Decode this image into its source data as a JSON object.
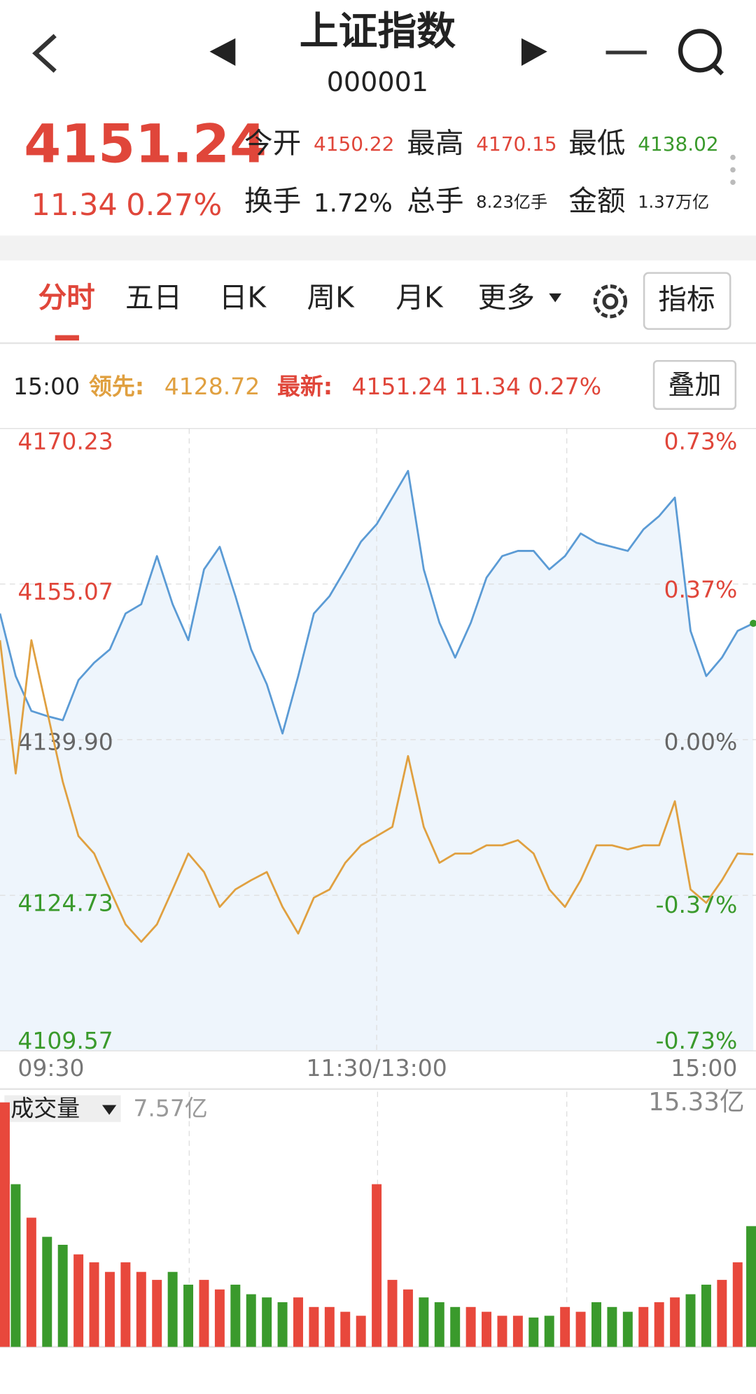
{
  "header": {
    "title": "上证指数",
    "code": "000001"
  },
  "quote": {
    "price": "4151.24",
    "change": "11.34",
    "change_pct": "0.27%",
    "stats": [
      {
        "label": "今开",
        "value": "4150.22"
      },
      {
        "label": "最高",
        "value": "4170.15"
      },
      {
        "label": "最低",
        "value": "4138.02"
      },
      {
        "label": "换手",
        "value": "1.72%"
      },
      {
        "label": "总手",
        "value": "8.23亿手"
      },
      {
        "label": "金额",
        "value": "1.37万亿"
      }
    ]
  },
  "tabs": [
    "分时",
    "五日",
    "日K",
    "周K",
    "月K",
    "更多"
  ],
  "indicator_button": "指标",
  "info_bar": {
    "time": "15:00",
    "lead_label": "领先:",
    "lead_value": "4128.72",
    "latest_label": "最新:",
    "latest_value": "4151.24 11.34 0.27%"
  },
  "overlay_button": "叠加",
  "chart_data": [
    {
      "type": "line",
      "x": [
        0,
        5,
        10,
        15,
        20,
        25,
        30,
        35,
        40,
        45,
        50,
        55,
        60,
        65,
        70,
        75,
        80,
        85,
        90,
        95,
        100,
        105,
        110,
        115,
        120,
        125,
        130,
        135,
        140,
        145,
        150,
        155,
        160,
        165,
        170,
        175,
        180,
        185,
        190,
        195,
        200,
        205,
        210,
        215,
        220,
        225,
        230,
        235,
        240
      ],
      "xlim": [
        0,
        240
      ],
      "xticks": [
        {
          "value": 0,
          "label": "09:30"
        },
        {
          "value": 120,
          "label": "11:30/13:00"
        },
        {
          "value": 240,
          "label": "15:00"
        }
      ],
      "ylim": [
        4109.57,
        4170.23
      ],
      "yticks": [
        4170.23,
        4155.07,
        {
          "value": 4139.9,
          "label": "4139.90"
        },
        4124.73,
        4109.57
      ],
      "y2lim": [
        -0.73,
        0.73
      ],
      "y2ticks": [
        {
          "value": 0.73,
          "label": "0.73%"
        },
        {
          "value": 0.37,
          "label": "0.37%"
        },
        {
          "value": 0,
          "label": "0.00%"
        },
        {
          "value": -0.37,
          "label": "-0.37%"
        },
        {
          "value": -0.73,
          "label": "-0.73%"
        }
      ],
      "grid": true,
      "series": [
        {
          "color": "#5b9bd5",
          "fill": "#eef5fc",
          "values": [
            4152.2,
            4146.1,
            4142.7,
            4142.2,
            4141.8,
            4145.7,
            4147.4,
            4148.7,
            4152.2,
            4153.1,
            4157.8,
            4153.1,
            4149.6,
            4156.5,
            4158.7,
            4153.9,
            4148.7,
            4145.3,
            4140.5,
            4146.1,
            4152.2,
            4153.9,
            4156.5,
            4159.2,
            4160.9,
            4163.5,
            4166.1,
            4156.5,
            4151.3,
            4147.9,
            4151.3,
            4155.7,
            4157.8,
            4158.3,
            4158.3,
            4156.5,
            4157.8,
            4160.0,
            4159.1,
            4158.7,
            4158.3,
            4160.4,
            4161.7,
            4163.5,
            4150.5,
            4146.1,
            4147.9,
            4150.5,
            4151.24
          ]
        },
        {
          "color": "#e0a040",
          "values": [
            4149.6,
            4136.6,
            4149.6,
            4142.7,
            4135.8,
            4130.5,
            4128.8,
            4125.3,
            4121.9,
            4120.2,
            4121.9,
            4125.3,
            4128.8,
            4127.0,
            4123.6,
            4125.3,
            4126.2,
            4127.0,
            4123.6,
            4121.0,
            4124.5,
            4125.3,
            4127.9,
            4129.6,
            4130.5,
            4131.4,
            4138.3,
            4131.4,
            4127.9,
            4128.8,
            4128.8,
            4129.6,
            4129.6,
            4130.1,
            4128.8,
            4125.3,
            4123.6,
            4126.2,
            4129.6,
            4129.6,
            4129.2,
            4129.6,
            4129.6,
            4133.9,
            4125.3,
            4124.0,
            4126.2,
            4128.8,
            4128.72
          ]
        }
      ]
    },
    {
      "type": "bar",
      "title": "成交量",
      "annotation": "7.57亿",
      "x": [
        0,
        5,
        10,
        15,
        20,
        25,
        30,
        35,
        40,
        45,
        50,
        55,
        60,
        65,
        70,
        75,
        80,
        85,
        90,
        95,
        100,
        105,
        110,
        115,
        120,
        125,
        130,
        135,
        140,
        145,
        150,
        155,
        160,
        165,
        170,
        175,
        180,
        185,
        190,
        195,
        200,
        205,
        210,
        215,
        220,
        225,
        230,
        235,
        240
      ],
      "xlim": [
        0,
        240
      ],
      "ylim": [
        0,
        15.33
      ],
      "yticks": [
        {
          "value": 15.33,
          "label": "15.33亿"
        }
      ],
      "values": [
        15.33,
        10.2,
        8.1,
        6.9,
        6.4,
        5.8,
        5.3,
        4.7,
        5.3,
        4.7,
        4.2,
        4.7,
        3.9,
        4.2,
        3.6,
        3.9,
        3.3,
        3.1,
        2.8,
        3.1,
        2.5,
        2.5,
        2.2,
        1.95,
        10.2,
        4.2,
        3.6,
        3.1,
        2.8,
        2.5,
        2.5,
        2.2,
        1.95,
        1.95,
        1.84,
        1.95,
        2.5,
        2.2,
        2.8,
        2.5,
        2.2,
        2.5,
        2.8,
        3.1,
        3.3,
        3.9,
        4.2,
        5.3,
        7.57
      ],
      "colors": [
        "#e8483c",
        "#3a9a2c",
        "#e8483c",
        "#3a9a2c",
        "#3a9a2c",
        "#e8483c",
        "#e8483c",
        "#e8483c",
        "#e8483c",
        "#e8483c",
        "#e8483c",
        "#3a9a2c",
        "#3a9a2c",
        "#e8483c",
        "#e8483c",
        "#3a9a2c",
        "#3a9a2c",
        "#3a9a2c",
        "#3a9a2c",
        "#e8483c",
        "#e8483c",
        "#e8483c",
        "#e8483c",
        "#e8483c",
        "#e8483c",
        "#e8483c",
        "#e8483c",
        "#3a9a2c",
        "#3a9a2c",
        "#3a9a2c",
        "#e8483c",
        "#e8483c",
        "#e8483c",
        "#e8483c",
        "#3a9a2c",
        "#3a9a2c",
        "#e8483c",
        "#e8483c",
        "#3a9a2c",
        "#3a9a2c",
        "#3a9a2c",
        "#e8483c",
        "#e8483c",
        "#e8483c",
        "#3a9a2c",
        "#3a9a2c",
        "#e8483c",
        "#e8483c",
        "#3a9a2c"
      ]
    }
  ]
}
